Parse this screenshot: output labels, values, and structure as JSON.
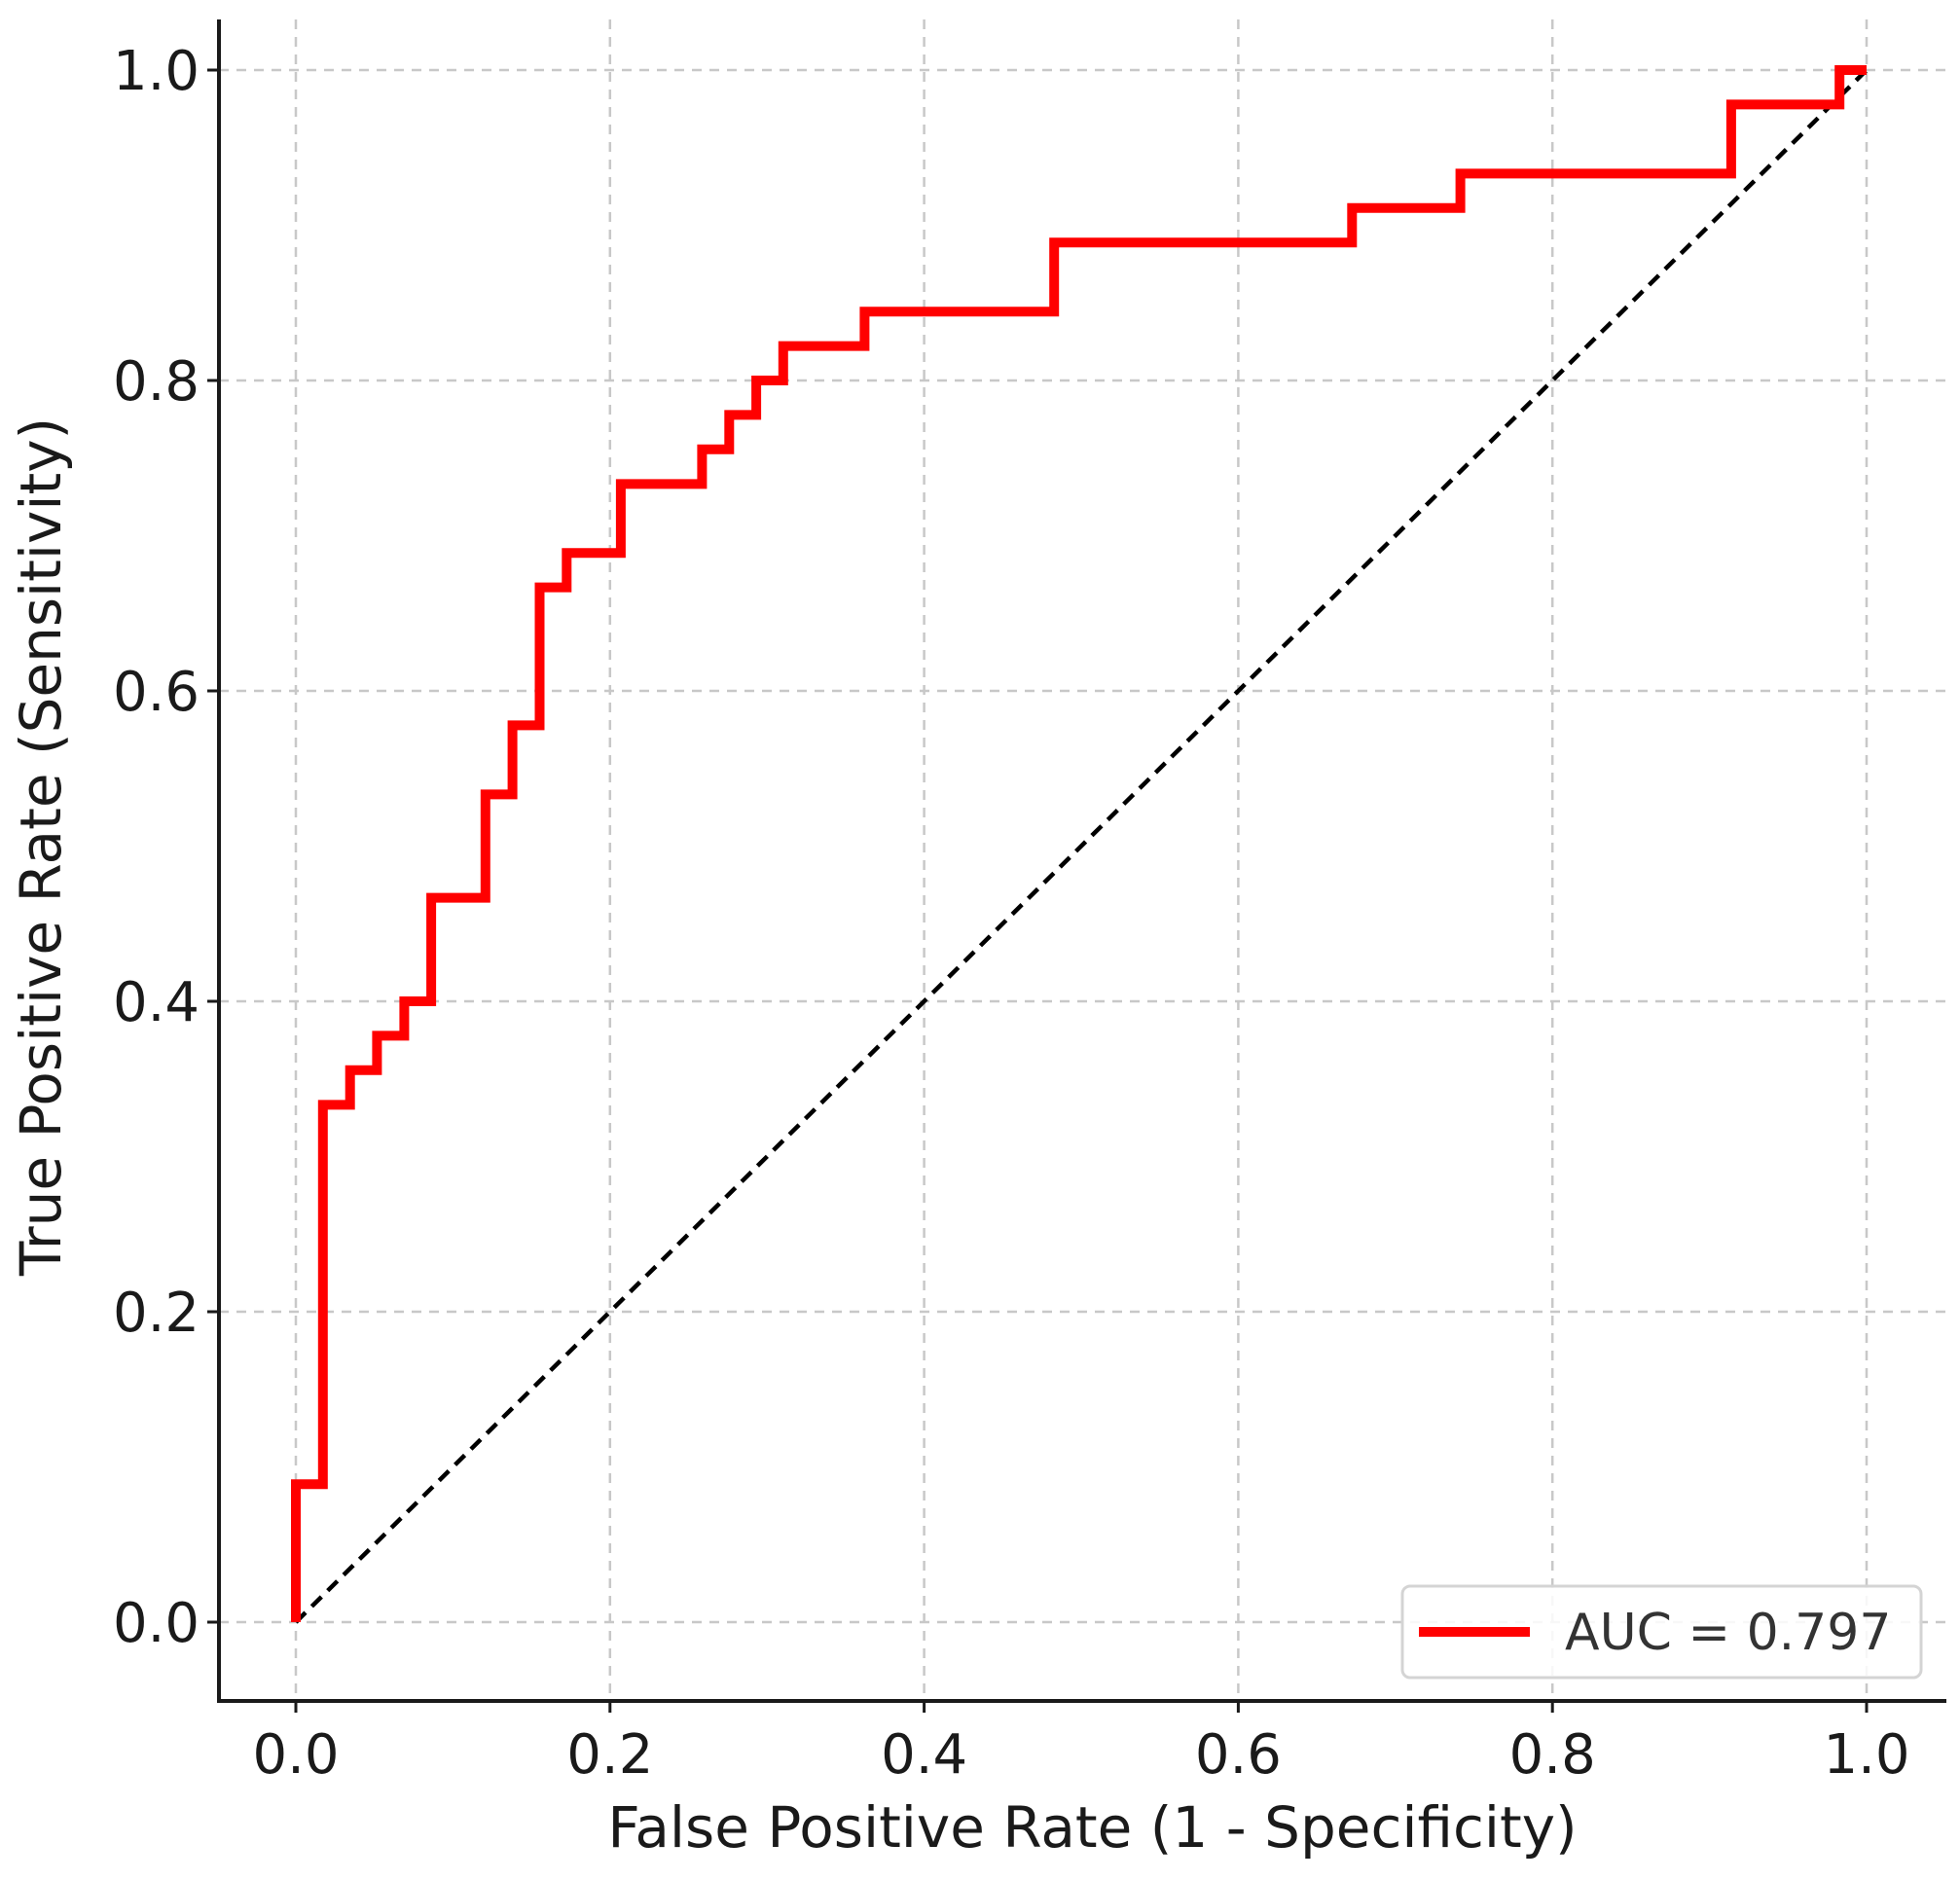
{
  "chart_data": {
    "type": "line",
    "xlabel": "False Positive Rate (1 - Specificity)",
    "ylabel": "True Positive Rate (Sensitivity)",
    "xlim": [
      -0.05,
      1.05
    ],
    "ylim": [
      -0.05,
      1.03
    ],
    "x_ticks": [
      "0.0",
      "0.2",
      "0.4",
      "0.6",
      "0.8",
      "1.0"
    ],
    "y_ticks": [
      "0.0",
      "0.2",
      "0.4",
      "0.6",
      "0.8",
      "1.0"
    ],
    "grid": true,
    "legend_position": "bottom-right",
    "series": [
      {
        "name": "AUC = 0.797",
        "color": "#ff0000",
        "style": "solid",
        "x": [
          0.0,
          0.0,
          0.0172,
          0.0172,
          0.0345,
          0.0345,
          0.0517,
          0.0517,
          0.069,
          0.069,
          0.0862,
          0.0862,
          0.1207,
          0.1207,
          0.1379,
          0.1379,
          0.1552,
          0.1552,
          0.1724,
          0.1724,
          0.2069,
          0.2069,
          0.2586,
          0.2586,
          0.2759,
          0.2759,
          0.2931,
          0.2931,
          0.3103,
          0.3103,
          0.3621,
          0.3621,
          0.4828,
          0.4828,
          0.6724,
          0.6724,
          0.7414,
          0.7414,
          0.9138,
          0.9138,
          0.9828,
          0.9828,
          1.0
        ],
        "y": [
          0.0,
          0.0889,
          0.0889,
          0.3333,
          0.3333,
          0.3556,
          0.3556,
          0.3778,
          0.3778,
          0.4,
          0.4,
          0.4667,
          0.4667,
          0.5333,
          0.5333,
          0.5778,
          0.5778,
          0.6667,
          0.6667,
          0.6889,
          0.6889,
          0.7333,
          0.7333,
          0.7556,
          0.7556,
          0.7778,
          0.7778,
          0.8,
          0.8,
          0.8222,
          0.8222,
          0.8444,
          0.8444,
          0.8889,
          0.8889,
          0.9111,
          0.9111,
          0.9333,
          0.9333,
          0.9778,
          0.9778,
          1.0,
          1.0
        ]
      },
      {
        "color": "#000000",
        "style": "dashed",
        "x": [
          0.0,
          1.0
        ],
        "y": [
          0.0,
          1.0
        ]
      }
    ]
  }
}
